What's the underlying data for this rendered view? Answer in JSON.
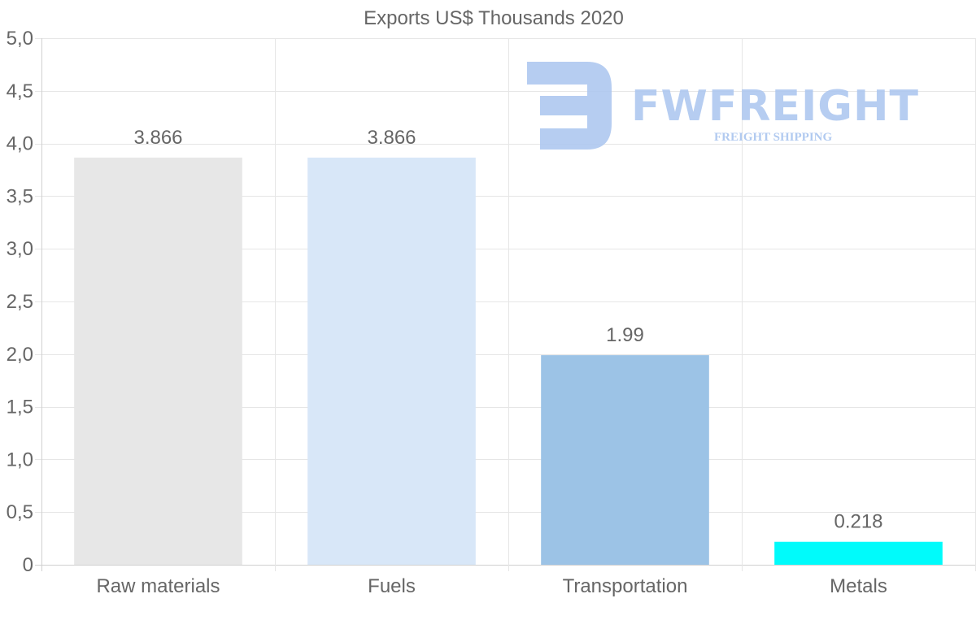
{
  "chart_data": {
    "type": "bar",
    "title": "Exports US$ Thousands 2020",
    "categories": [
      "Raw materials",
      "Fuels",
      "Transportation",
      "Metals"
    ],
    "values": [
      3.866,
      3.866,
      1.99,
      0.218
    ],
    "value_labels": [
      "3.866",
      "3.866",
      "1.99",
      "0.218"
    ],
    "colors": [
      "#e7e7e7",
      "#d8e7f8",
      "#9cc3e6",
      "#00fbfb"
    ],
    "ylim": [
      0,
      5
    ],
    "yticks": [
      0,
      0.5,
      1,
      1.5,
      2,
      2.5,
      3,
      3.5,
      4,
      4.5,
      5
    ],
    "ytick_labels": [
      "0",
      "0,5",
      "1,0",
      "1,5",
      "2,0",
      "2,5",
      "3,0",
      "3,5",
      "4,0",
      "4,5",
      "5,0"
    ],
    "xlabel": "",
    "ylabel": "",
    "grid": true,
    "legend": "none"
  },
  "watermark": {
    "name": "FWFREIGHT",
    "tagline": "FREIGHT SHIPPING",
    "color": "#a9c4ee"
  }
}
